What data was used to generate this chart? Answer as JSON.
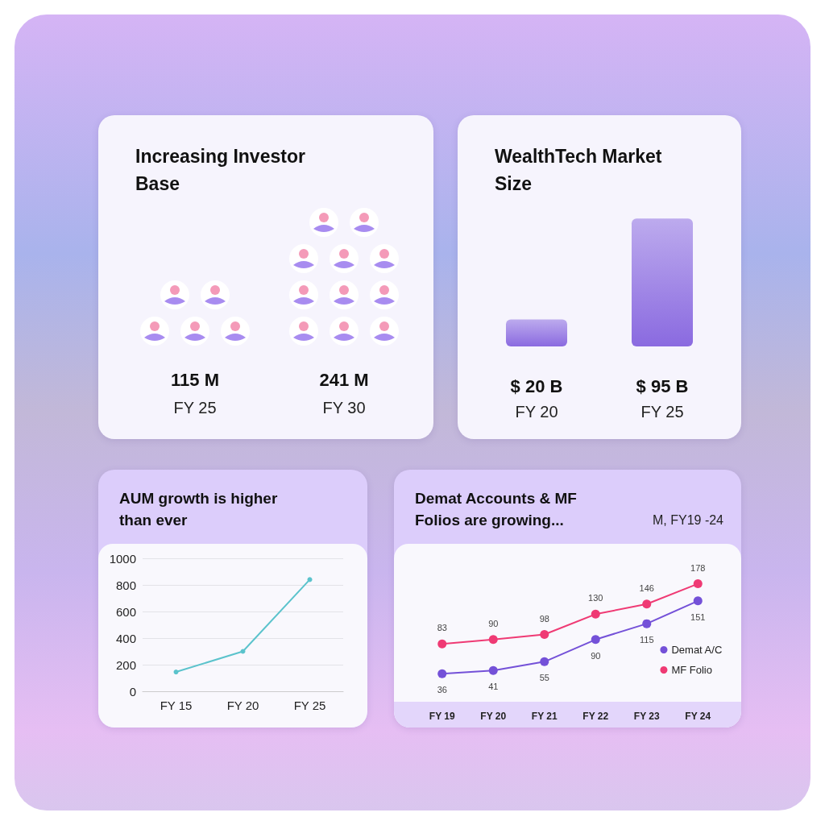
{
  "chart_data": [
    {
      "type": "other",
      "title": "Increasing Investor Base",
      "categories": [
        "FY 25",
        "FY 30"
      ],
      "values": [
        115,
        241
      ],
      "value_labels": [
        "115 M",
        "241 M"
      ]
    },
    {
      "type": "bar",
      "title": "WealthTech Market Size",
      "categories": [
        "FY 20",
        "FY 25"
      ],
      "values": [
        20,
        95
      ],
      "color": "#8a6ae0",
      "value_labels": [
        "$ 20 B",
        "$ 95 B"
      ]
    },
    {
      "type": "line",
      "title": "AUM growth is higher than ever",
      "categories": [
        "FY 15",
        "FY 20",
        "FY 25"
      ],
      "values": [
        145,
        300,
        840
      ],
      "color": "#5bc3cc",
      "ylim": [
        0,
        1000
      ],
      "yticks": [
        0,
        200,
        400,
        600,
        800,
        1000
      ],
      "grid": "y",
      "marker": "circle"
    },
    {
      "type": "line",
      "title": "Demat Accounts & MF Folios are growing...",
      "subtitle": "M, FY19 -24",
      "categories": [
        "FY 19",
        "FY 20",
        "FY 21",
        "FY 22",
        "FY 23",
        "FY 24"
      ],
      "series": [
        {
          "name": "Demat A/C",
          "color": "#7451d8",
          "values": [
            36,
            41,
            55,
            90,
            115,
            151
          ]
        },
        {
          "name": "MF Folio",
          "color": "#ef3a74",
          "values": [
            83,
            90,
            98,
            130,
            146,
            178
          ]
        }
      ],
      "data_labels": true,
      "legend": "bottom right",
      "marker": "circle"
    }
  ]
}
